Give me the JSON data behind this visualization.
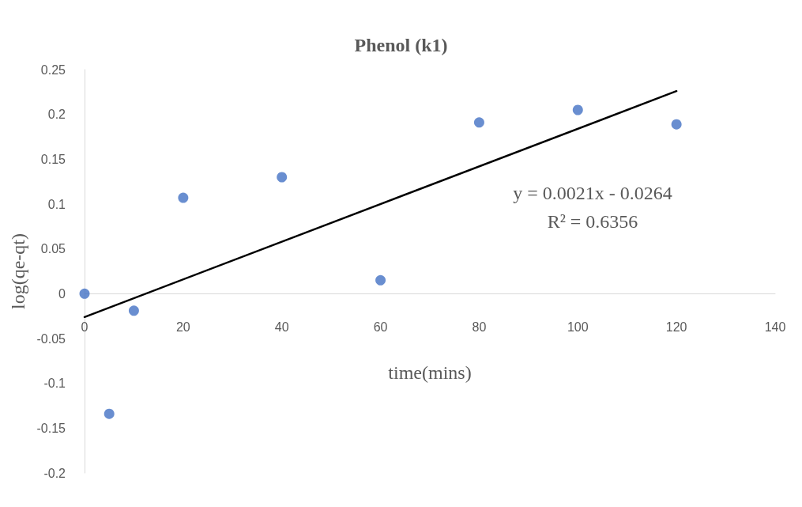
{
  "chart_data": {
    "type": "scatter",
    "title": "Phenol (k1)",
    "xlabel": "time(mins)",
    "ylabel": "log(qe-qt)",
    "annotations": [
      "y = 0.0021x - 0.0264",
      "R² = 0.6356"
    ],
    "xlim": [
      0,
      140
    ],
    "xticks": [
      0,
      20,
      40,
      60,
      80,
      100,
      120,
      140
    ],
    "ylim": [
      -0.2,
      0.25
    ],
    "yticks": [
      -0.2,
      -0.15,
      -0.1,
      -0.05,
      0,
      0.05,
      0.1,
      0.15,
      0.2,
      0.25
    ],
    "marker": "circle",
    "series": [
      {
        "color": "#4472c4",
        "x": [
          0,
          5,
          10,
          20,
          40,
          60,
          80,
          100,
          120
        ],
        "values": [
          0,
          -0.134,
          -0.019,
          0.107,
          0.13,
          0.015,
          0.191,
          0.205,
          0.189
        ]
      },
      {
        "type": "line",
        "color": "#000000",
        "line_style": "solid",
        "marker": "none",
        "x": [
          0,
          120
        ],
        "values": [
          -0.026,
          0.226
        ]
      }
    ]
  }
}
